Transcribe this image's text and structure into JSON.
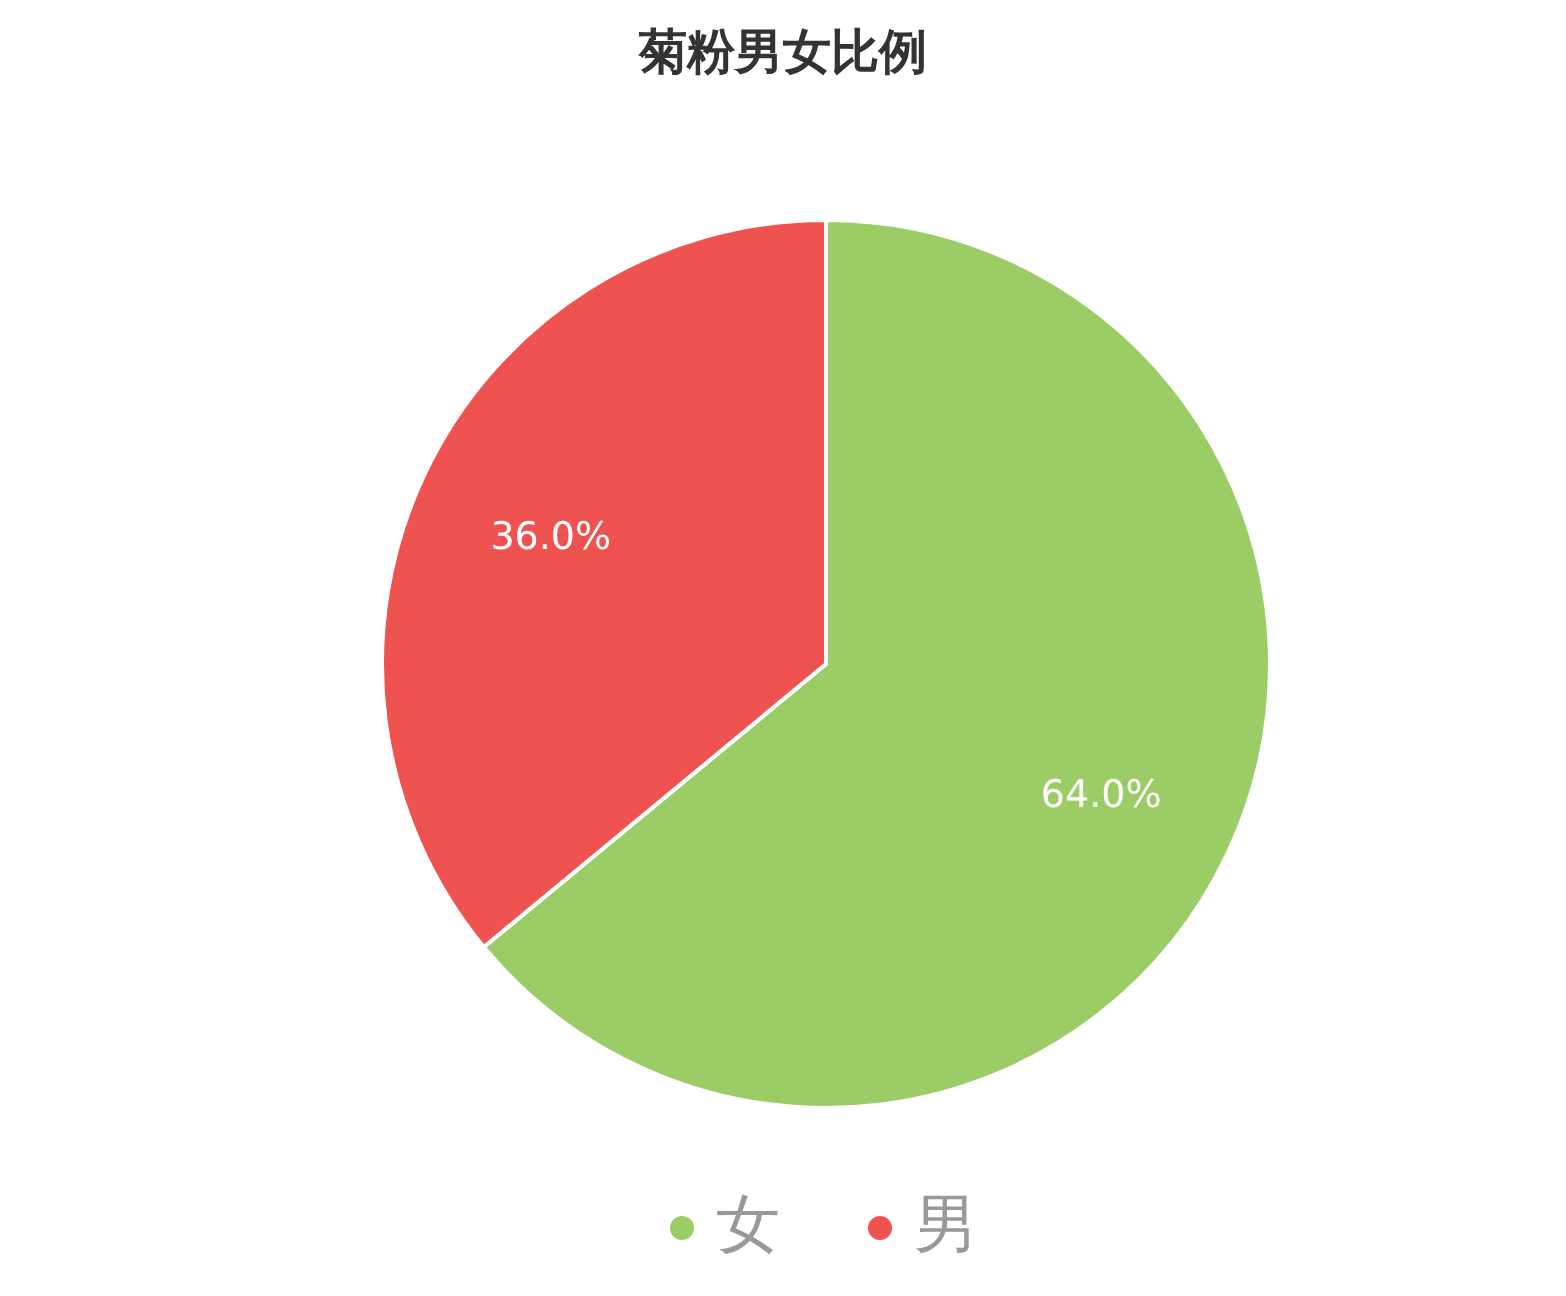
{
  "chart_data": {
    "type": "pie",
    "title": "菊粉男女比例",
    "categories": [
      "女",
      "男"
    ],
    "values": [
      64.0,
      36.0
    ],
    "colors": [
      "#9ccc65",
      "#ef5350"
    ],
    "value_labels": [
      "64.0%",
      "36.0%"
    ],
    "legend": "bottom"
  }
}
